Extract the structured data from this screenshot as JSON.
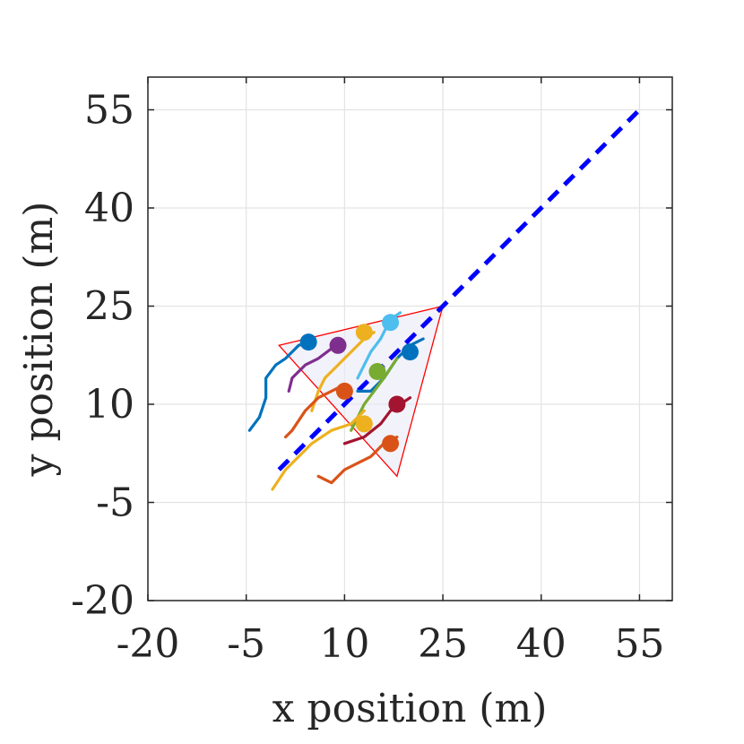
{
  "chart_data": {
    "type": "line",
    "title": "",
    "xlabel": "x position (m)",
    "ylabel": "y position (m)",
    "xlim": [
      -20,
      60
    ],
    "ylim": [
      -20,
      60
    ],
    "xticks": [
      -20,
      -5,
      10,
      25,
      40,
      55
    ],
    "yticks": [
      -20,
      -5,
      10,
      25,
      40,
      55
    ],
    "xtick_labels": [
      "-20",
      "-5",
      "10",
      "25",
      "40",
      "55"
    ],
    "ytick_labels": [
      "-20",
      "-5",
      "10",
      "25",
      "40",
      "55"
    ],
    "grid": true,
    "legend": "none",
    "reference_line": {
      "color": "#0000ff",
      "points": [
        [
          0,
          0
        ],
        [
          55.5,
          55.5
        ]
      ]
    },
    "formation_region": {
      "edge_color": "#ff0000",
      "fill_color": "#e9e9f7",
      "vertices": [
        [
          25,
          25
        ],
        [
          0,
          19
        ],
        [
          18,
          -1
        ]
      ]
    },
    "trajectories": [
      {
        "color": "#0072bd",
        "points": [
          [
            -4.5,
            6
          ],
          [
            -3,
            8
          ],
          [
            -2,
            11
          ],
          [
            -2,
            14
          ],
          [
            -0.5,
            16
          ],
          [
            1,
            17
          ],
          [
            2,
            18
          ],
          [
            3,
            19
          ],
          [
            4.5,
            19.5
          ]
        ],
        "marker": [
          4.5,
          19.5
        ]
      },
      {
        "color": "#7e2f8e",
        "points": [
          [
            1.5,
            12
          ],
          [
            2,
            14
          ],
          [
            4,
            16
          ],
          [
            6,
            17
          ],
          [
            8,
            18.5
          ],
          [
            9.5,
            19.5
          ]
        ],
        "marker": [
          9,
          19
        ]
      },
      {
        "color": "#edb120",
        "points": [
          [
            5,
            9
          ],
          [
            6,
            12
          ],
          [
            7,
            14
          ],
          [
            9,
            16
          ],
          [
            11,
            18
          ],
          [
            13,
            20
          ],
          [
            14.5,
            21
          ]
        ],
        "marker": [
          13,
          21
        ]
      },
      {
        "color": "#4dbeee",
        "points": [
          [
            12,
            14
          ],
          [
            13,
            16
          ],
          [
            14,
            18
          ],
          [
            15.5,
            20
          ],
          [
            17,
            23
          ],
          [
            18.5,
            24
          ]
        ],
        "marker": [
          17,
          22.5
        ]
      },
      {
        "color": "#0072bd",
        "points": [
          [
            12,
            12
          ],
          [
            14,
            12
          ],
          [
            16,
            14
          ],
          [
            18,
            17
          ],
          [
            20,
            19
          ],
          [
            22,
            20
          ]
        ],
        "marker": [
          20,
          18
        ]
      },
      {
        "color": "#77ac30",
        "points": [
          [
            11,
            6
          ],
          [
            12,
            8
          ],
          [
            13,
            10
          ],
          [
            14.5,
            12
          ],
          [
            16,
            14
          ],
          [
            18,
            17
          ]
        ],
        "marker": [
          15,
          15
        ]
      },
      {
        "color": "#d95319",
        "points": [
          [
            1,
            5
          ],
          [
            2,
            6
          ],
          [
            4,
            9
          ],
          [
            6,
            11
          ],
          [
            8,
            12
          ],
          [
            10,
            13
          ]
        ],
        "marker": [
          10,
          12
        ]
      },
      {
        "color": "#edb120",
        "points": [
          [
            -1,
            -3
          ],
          [
            1,
            0
          ],
          [
            3,
            2
          ],
          [
            5,
            4
          ],
          [
            8,
            6
          ],
          [
            11,
            7
          ],
          [
            13,
            9
          ]
        ],
        "marker": [
          13,
          7
        ]
      },
      {
        "color": "#a2142f",
        "points": [
          [
            10,
            4
          ],
          [
            13,
            5
          ],
          [
            15.5,
            7
          ],
          [
            17,
            9
          ],
          [
            18.5,
            10
          ],
          [
            20,
            11
          ]
        ],
        "marker": [
          18,
          10
        ]
      },
      {
        "color": "#d95319",
        "points": [
          [
            6,
            -1
          ],
          [
            8,
            -2
          ],
          [
            10,
            0
          ],
          [
            12,
            1
          ],
          [
            14,
            2
          ],
          [
            16,
            4
          ],
          [
            18,
            5
          ]
        ],
        "marker": [
          17,
          4
        ]
      }
    ]
  }
}
